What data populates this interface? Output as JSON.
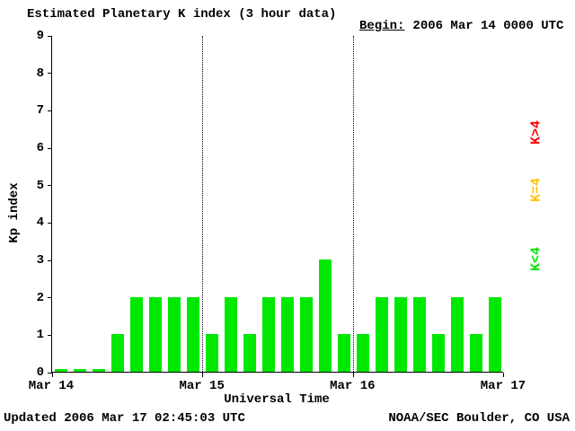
{
  "title": "Estimated Planetary K index (3 hour data)",
  "begin": {
    "label": "Begin:",
    "value": "2006 Mar 14 0000 UTC"
  },
  "footer": {
    "updated": "Updated 2006 Mar 17 02:45:03 UTC",
    "credit": "NOAA/SEC Boulder, CO USA"
  },
  "legend": [
    {
      "label": "K>4",
      "color": "#ff0000"
    },
    {
      "label": "K=4",
      "color": "#ffc000"
    },
    {
      "label": "K<4",
      "color": "#00e800"
    }
  ],
  "chart_data": {
    "type": "bar",
    "title": "Estimated Planetary K index (3 hour data)",
    "xlabel": "Universal Time",
    "ylabel": "Kp index",
    "ylim": [
      0,
      9
    ],
    "y_ticks": [
      0,
      1,
      2,
      3,
      4,
      5,
      6,
      7,
      8,
      9
    ],
    "x_ticks": [
      "Mar 14",
      "Mar 15",
      "Mar 16",
      "Mar 17"
    ],
    "hours_per_bar": 3,
    "bars_per_day": 8,
    "values": [
      0,
      0,
      0,
      1,
      2,
      2,
      2,
      2,
      1,
      2,
      1,
      2,
      2,
      2,
      3,
      1,
      1,
      2,
      2,
      2,
      1,
      2,
      1,
      2
    ],
    "color_rule": {
      "lt4": "#00e800",
      "eq4": "#ffc000",
      "gt4": "#ff0000"
    },
    "grid": "dotted vertical lines at day boundaries",
    "legend_position": "right"
  }
}
